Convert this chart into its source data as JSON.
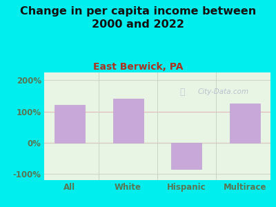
{
  "title": "Change in per capita income between\n2000 and 2022",
  "subtitle": "East Berwick, PA",
  "categories": [
    "All",
    "White",
    "Hispanic",
    "Multirace"
  ],
  "values": [
    120,
    140,
    -85,
    125
  ],
  "bar_color": "#c8a8d8",
  "bar_edge_color": "#c0a0d0",
  "background_color": "#00eeee",
  "plot_bg_color": "#e8f5e5",
  "title_fontsize": 11.5,
  "subtitle_fontsize": 10,
  "title_color": "#111111",
  "subtitle_color": "#aa3322",
  "tick_color": "#557755",
  "ytick_color": "#557755",
  "ylim": [
    -120,
    225
  ],
  "yticks": [
    -100,
    0,
    100,
    200
  ],
  "ytick_labels": [
    "-100%",
    "0%",
    "100%",
    "200%"
  ],
  "watermark": "City-Data.com",
  "watermark_color": "#b0b8c8",
  "hline_colors": {
    "200": "#d0d8c8",
    "100": "#e0b8b8",
    "0": "#d8c8c0",
    "-100": "#d0d8c8"
  },
  "vline_color": "#c8d4c0"
}
